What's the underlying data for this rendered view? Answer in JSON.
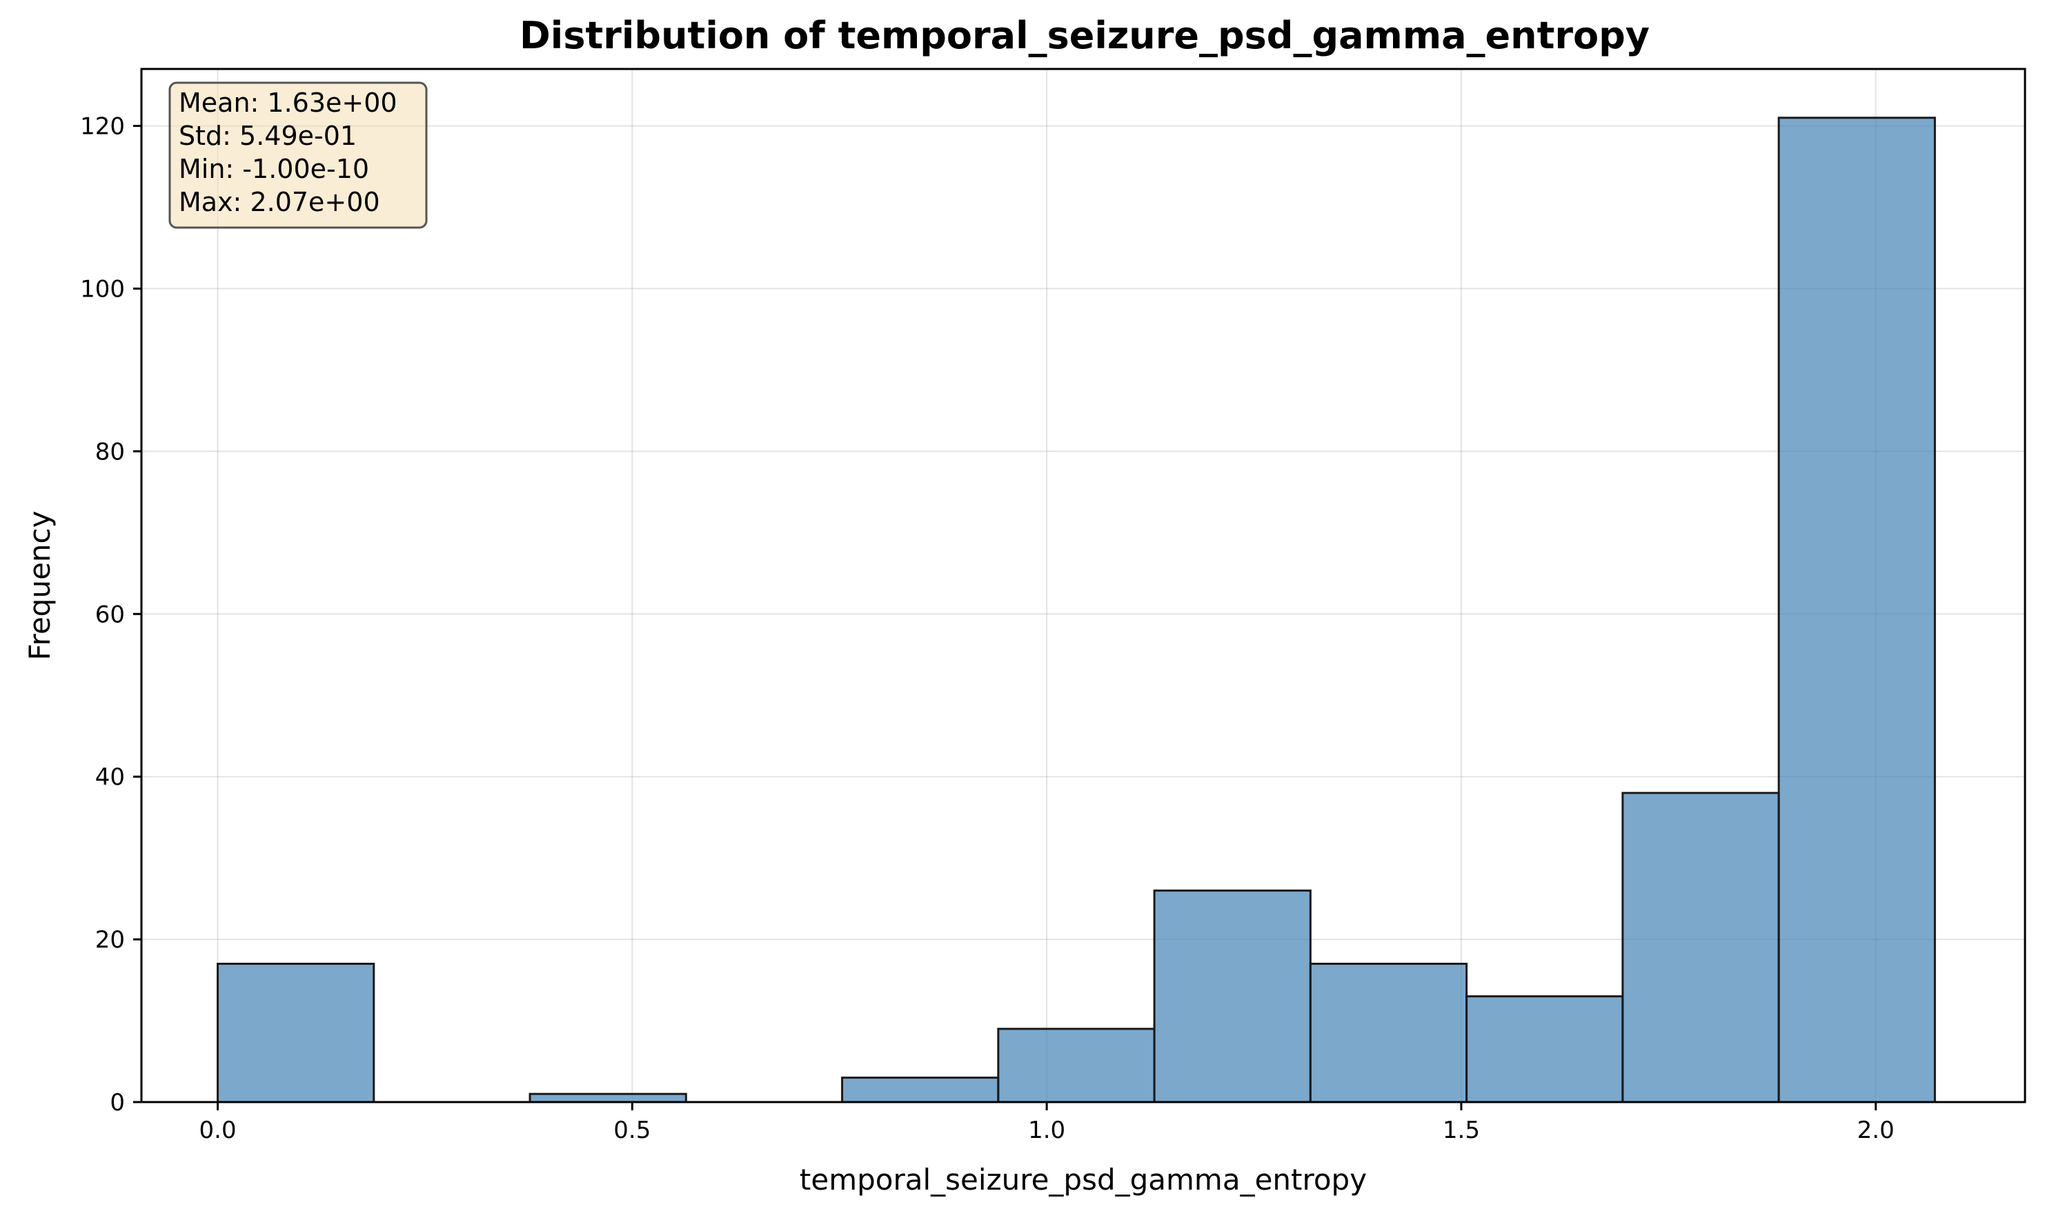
{
  "chart_data": {
    "type": "bar",
    "title": "Distribution of temporal_seizure_psd_gamma_entropy",
    "xlabel": "temporal_seizure_psd_gamma_entropy",
    "ylabel": "Frequency",
    "xlim": [
      -0.092,
      2.18
    ],
    "ylim": [
      0,
      127
    ],
    "x_ticks": [
      0.0,
      0.5,
      1.0,
      1.5,
      2.0
    ],
    "x_tick_labels": [
      "0.0",
      "0.5",
      "1.0",
      "1.5",
      "2.0"
    ],
    "y_ticks": [
      0,
      20,
      40,
      60,
      80,
      100,
      120
    ],
    "y_tick_labels": [
      "0",
      "20",
      "40",
      "60",
      "80",
      "100",
      "120"
    ],
    "grid": true,
    "bin_edges": [
      0.0,
      0.1883,
      0.3766,
      0.5649,
      0.7532,
      0.9415,
      1.1298,
      1.3181,
      1.5064,
      1.6947,
      1.883,
      2.0713
    ],
    "values": [
      17,
      0,
      1,
      0,
      3,
      9,
      26,
      17,
      13,
      38,
      121
    ],
    "bar_color": "#4a86b8",
    "bar_edge_color": "#1a1a1a",
    "stats_box": {
      "location": "top-left",
      "lines": [
        "Mean: 1.63e+00",
        "Std: 5.49e-01",
        "Min: -1.00e-10",
        "Max: 2.07e+00"
      ],
      "background": "#f5deb3"
    }
  }
}
